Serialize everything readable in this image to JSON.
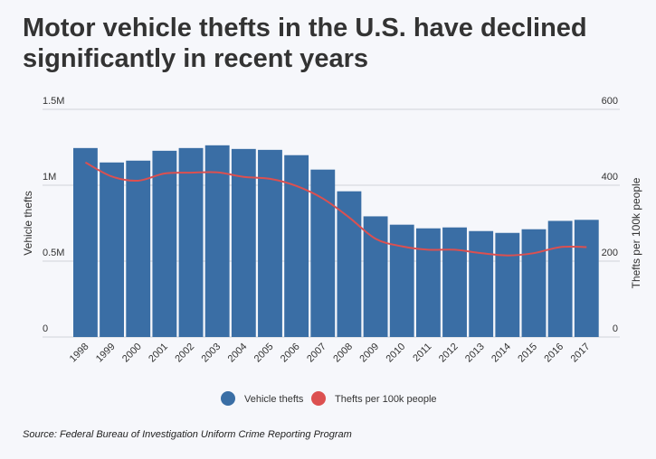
{
  "title": "Motor vehicle thefts in the U.S. have declined significantly in recent years",
  "source": "Source: Federal Bureau of Investigation Uniform Crime Reporting Program",
  "colors": {
    "bars": "#3a6ea5",
    "line": "#dc5050",
    "background": "#f6f7fb",
    "grid": "#d0d3da"
  },
  "chart_data": {
    "type": "bar+line",
    "categories": [
      "1998",
      "1999",
      "2000",
      "2001",
      "2002",
      "2003",
      "2004",
      "2005",
      "2006",
      "2007",
      "2008",
      "2009",
      "2010",
      "2011",
      "2012",
      "2013",
      "2014",
      "2015",
      "2016",
      "2017"
    ],
    "series": [
      {
        "name": "Vehicle thefts",
        "type": "bar",
        "axis": "left",
        "values": [
          1245000,
          1150000,
          1162000,
          1227000,
          1245000,
          1263000,
          1239000,
          1233000,
          1198000,
          1103000,
          960000,
          795000,
          740000,
          716000,
          722000,
          698000,
          686000,
          710000,
          765000,
          772000
        ]
      },
      {
        "name": "Thefts per 100k people",
        "type": "line",
        "axis": "right",
        "values": [
          460,
          423,
          412,
          431,
          433,
          434,
          422,
          417,
          398,
          365,
          315,
          259,
          239,
          230,
          230,
          221,
          215,
          221,
          237,
          237
        ]
      }
    ],
    "y_left": {
      "label": "Vehicle thefts",
      "range": [
        0,
        1500000
      ],
      "ticks": [
        0,
        500000,
        1000000,
        1500000
      ],
      "tick_labels": [
        "0",
        "0.5M",
        "1M",
        "1.5M"
      ]
    },
    "y_right": {
      "label": "Thefts per 100k people",
      "range": [
        0,
        600
      ],
      "ticks": [
        0,
        200,
        400,
        600
      ],
      "tick_labels": [
        "0",
        "200",
        "400",
        "600"
      ]
    },
    "grid": true,
    "legend": {
      "position": "bottom",
      "entries": [
        "Vehicle thefts",
        "Thefts per 100k people"
      ]
    }
  }
}
